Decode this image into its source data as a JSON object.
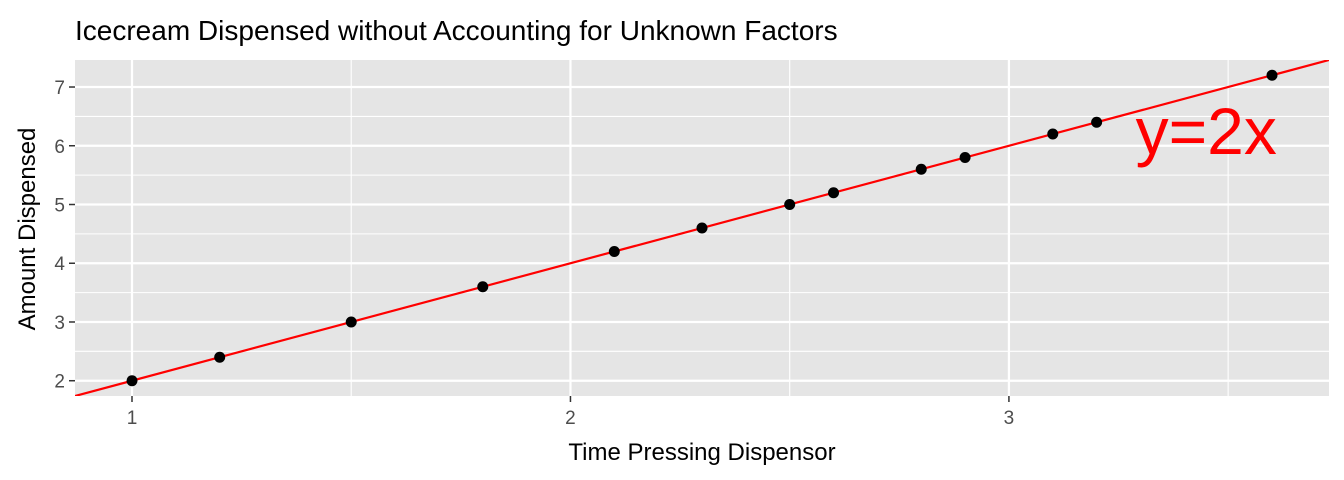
{
  "chart_data": {
    "type": "scatter",
    "title": "Icecream Dispensed without Accounting for Unknown Factors",
    "xlabel": "Time Pressing Dispensor",
    "ylabel": "Amount Dispensed",
    "xlim": [
      0.87,
      3.73
    ],
    "ylim": [
      1.74,
      7.46
    ],
    "x_major_ticks": [
      1,
      2,
      3
    ],
    "x_tick_labels": [
      "1",
      "2",
      "3"
    ],
    "y_major_ticks": [
      2,
      3,
      4,
      5,
      6,
      7
    ],
    "y_tick_labels": [
      "2",
      "3",
      "4",
      "5",
      "6",
      "7"
    ],
    "grid": true,
    "legend": "none",
    "points": [
      {
        "x": 1.0,
        "y": 2.0
      },
      {
        "x": 1.2,
        "y": 2.4
      },
      {
        "x": 1.5,
        "y": 3.0
      },
      {
        "x": 1.8,
        "y": 3.6
      },
      {
        "x": 2.1,
        "y": 4.2
      },
      {
        "x": 2.3,
        "y": 4.6
      },
      {
        "x": 2.5,
        "y": 5.0
      },
      {
        "x": 2.6,
        "y": 5.2
      },
      {
        "x": 2.8,
        "y": 5.6
      },
      {
        "x": 2.9,
        "y": 5.8
      },
      {
        "x": 3.1,
        "y": 6.2
      },
      {
        "x": 3.2,
        "y": 6.4
      },
      {
        "x": 3.6,
        "y": 7.2
      }
    ],
    "fit_line": {
      "slope": 2,
      "intercept": 0
    },
    "annotation": {
      "text": "y=2x",
      "x": 3.45,
      "y": 6.25
    },
    "colors": {
      "panel": "#e5e5e5",
      "grid": "#ffffff",
      "point": "#000000",
      "line": "#ff0000",
      "annotation": "#ff0000"
    }
  }
}
